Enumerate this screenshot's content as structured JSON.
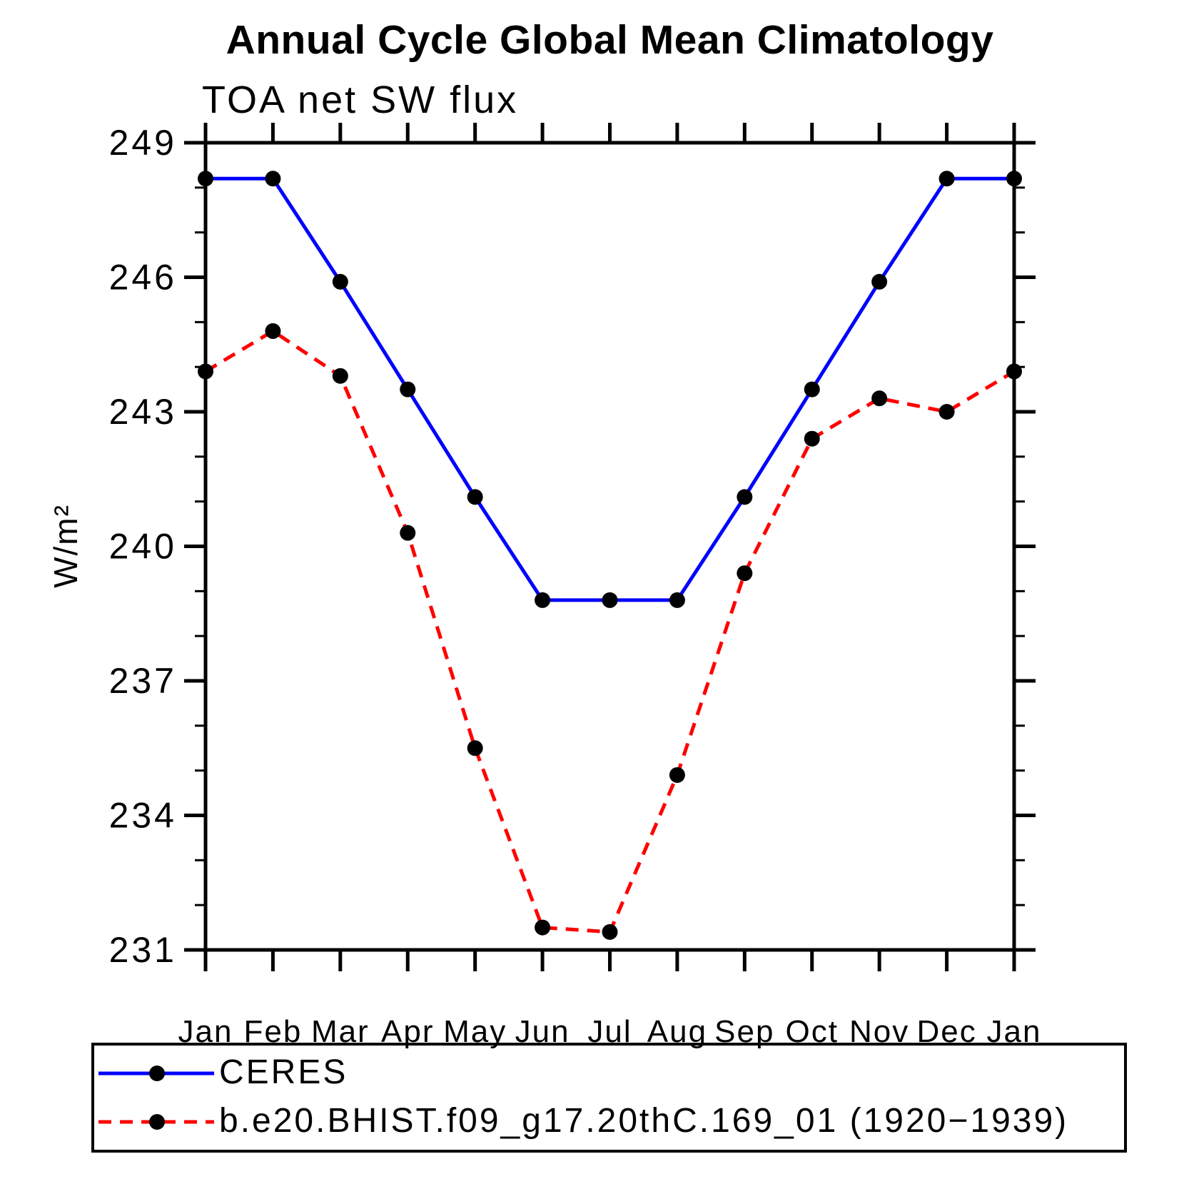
{
  "page": {
    "background": "#ffffff"
  },
  "chart_data": {
    "type": "line",
    "title": "Annual Cycle Global Mean Climatology",
    "subtitle": "TOA net SW flux",
    "xlabel": "",
    "ylabel": "W/m²",
    "ylim": [
      231,
      249
    ],
    "yticks_major": [
      231,
      234,
      237,
      240,
      243,
      246,
      249
    ],
    "ytick_labels": [
      "231",
      "234",
      "237",
      "240",
      "243",
      "246",
      "249"
    ],
    "minor_tick_interval": 1,
    "grid": false,
    "legend_position": "bottom",
    "frame_color": "#000000",
    "categories": [
      "Jan",
      "Feb",
      "Mar",
      "Apr",
      "May",
      "Jun",
      "Jul",
      "Aug",
      "Sep",
      "Oct",
      "Nov",
      "Dec",
      "Jan"
    ],
    "series": [
      {
        "name": "CERES",
        "color": "#0000ff",
        "style": "solid",
        "marker": "circle",
        "marker_color": "#000000",
        "values": [
          248.2,
          248.2,
          245.9,
          243.5,
          241.1,
          238.8,
          238.8,
          238.8,
          241.1,
          243.5,
          245.9,
          248.2,
          248.2
        ]
      },
      {
        "name": "b.e20.BHIST.f09_g17.20thC.169_01 (1920−1939)",
        "color": "#ff0000",
        "style": "dashed",
        "marker": "circle",
        "marker_color": "#000000",
        "values": [
          243.9,
          244.8,
          243.8,
          240.3,
          235.5,
          231.5,
          231.4,
          234.9,
          239.4,
          242.4,
          243.3,
          243.0,
          243.9
        ]
      }
    ]
  }
}
